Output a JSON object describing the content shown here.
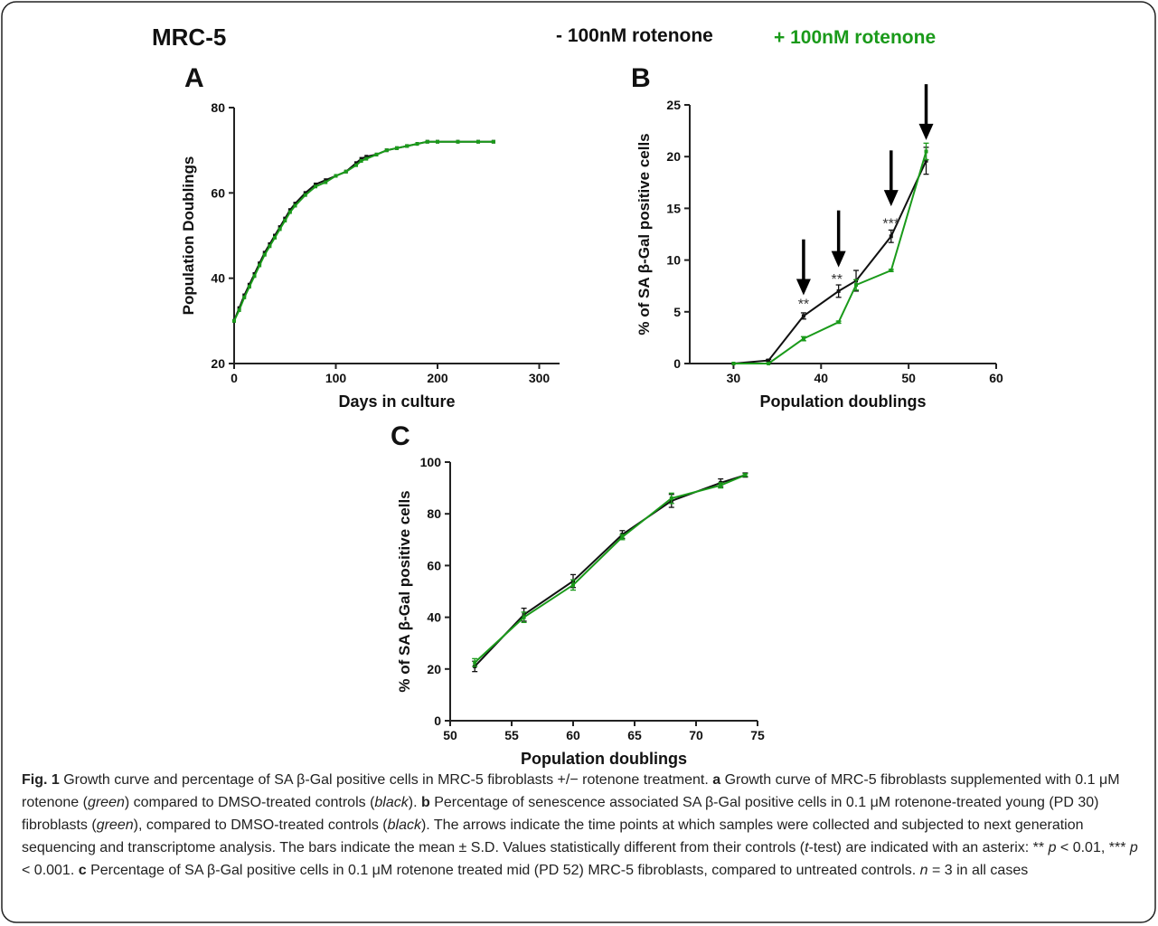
{
  "figure": {
    "cell_line": "MRC-5",
    "legend": [
      {
        "label": "- 100nM rotenone",
        "color": "#111111"
      },
      {
        "label": "+ 100nM rotenone",
        "color": "#1a9a1a"
      }
    ],
    "colors": {
      "control": "#111111",
      "rotenone": "#1a9a1a",
      "frame": "#222222"
    }
  },
  "chart_data": [
    {
      "panel": "A",
      "type": "line",
      "title": "",
      "xlabel": "Days in culture",
      "ylabel": "Population Doublings",
      "xlim": [
        0,
        320
      ],
      "ylim": [
        20,
        80
      ],
      "xticks": [
        0,
        100,
        200,
        300
      ],
      "yticks": [
        20,
        40,
        60,
        80
      ],
      "grid": false,
      "series": [
        {
          "name": "- 100nM rotenone",
          "color": "#111111",
          "x": [
            0,
            5,
            10,
            15,
            20,
            25,
            30,
            35,
            40,
            45,
            50,
            55,
            60,
            70,
            80,
            90,
            100,
            110,
            120,
            125,
            130,
            140,
            150,
            160,
            170,
            180,
            190,
            200,
            220,
            240,
            255
          ],
          "y": [
            30,
            33,
            36,
            38.5,
            41,
            43.5,
            46,
            48,
            50,
            52,
            54,
            56,
            57.5,
            60,
            62,
            63,
            64,
            65,
            67,
            68,
            68.5,
            69,
            70,
            70.5,
            71,
            71.5,
            72,
            72,
            72,
            72,
            72
          ]
        },
        {
          "name": "+ 100nM rotenone",
          "color": "#1a9a1a",
          "x": [
            0,
            5,
            10,
            15,
            20,
            25,
            30,
            35,
            40,
            45,
            50,
            55,
            60,
            70,
            80,
            90,
            100,
            110,
            120,
            125,
            130,
            140,
            150,
            160,
            170,
            180,
            190,
            200,
            220,
            240,
            255
          ],
          "y": [
            30,
            32.5,
            35.5,
            38,
            40.5,
            43,
            45.5,
            47.5,
            49.5,
            51.5,
            53.5,
            55.5,
            57,
            59.5,
            61.5,
            62.5,
            64,
            65,
            66.5,
            67.5,
            68,
            69,
            70,
            70.5,
            71,
            71.5,
            72,
            72,
            72,
            72,
            72
          ]
        }
      ]
    },
    {
      "panel": "B",
      "type": "line",
      "title": "",
      "xlabel": "Population doublings",
      "ylabel": "% of SA β-Gal positive cells",
      "xlim": [
        25,
        60
      ],
      "ylim": [
        0,
        25
      ],
      "xticks": [
        30,
        40,
        50,
        60
      ],
      "yticks": [
        0,
        5,
        10,
        15,
        20,
        25
      ],
      "grid": false,
      "series": [
        {
          "name": "- 100nM rotenone",
          "color": "#111111",
          "x": [
            30,
            34,
            38,
            42,
            44,
            48,
            52
          ],
          "y": [
            0,
            0.3,
            4.6,
            7,
            8,
            12.3,
            19.6
          ],
          "err": [
            0,
            0.1,
            0.3,
            0.6,
            1.0,
            0.6,
            1.3
          ]
        },
        {
          "name": "+ 100nM rotenone",
          "color": "#1a9a1a",
          "x": [
            30,
            34,
            38,
            42,
            44,
            48,
            52
          ],
          "y": [
            0,
            0,
            2.4,
            4,
            7.6,
            9,
            20.5
          ],
          "err": [
            0,
            0,
            0.2,
            0.1,
            0.5,
            0.1,
            0.8
          ]
        }
      ],
      "annotations": [
        {
          "text": "**",
          "x": 38,
          "y": 5.8
        },
        {
          "text": "**",
          "x": 41.8,
          "y": 8.2
        },
        {
          "text": "***",
          "x": 48,
          "y": 13.6
        }
      ],
      "arrows": [
        {
          "x": 38,
          "y_tip": 6.6,
          "y_tail": 12
        },
        {
          "x": 42,
          "y_tip": 9.3,
          "y_tail": 14.8
        },
        {
          "x": 48,
          "y_tip": 15.2,
          "y_tail": 20.6
        },
        {
          "x": 52,
          "y_tip": 21.6,
          "y_tail": 27
        }
      ]
    },
    {
      "panel": "C",
      "type": "line",
      "title": "",
      "xlabel": "Population doublings",
      "ylabel": "% of SA β-Gal positive cells",
      "xlim": [
        50,
        75
      ],
      "ylim": [
        0,
        100
      ],
      "xticks": [
        50,
        55,
        60,
        65,
        70,
        75
      ],
      "yticks": [
        0,
        20,
        40,
        60,
        80,
        100
      ],
      "grid": false,
      "series": [
        {
          "name": "- 100nM rotenone",
          "color": "#111111",
          "x": [
            52,
            56,
            60,
            64,
            68,
            72,
            74
          ],
          "y": [
            21,
            41,
            54,
            72,
            85,
            92,
            95
          ],
          "err": [
            2,
            2.5,
            2.5,
            1.5,
            2.5,
            1.5,
            0.8
          ]
        },
        {
          "name": "+ 100nM rotenone",
          "color": "#1a9a1a",
          "x": [
            52,
            56,
            60,
            64,
            68,
            72,
            74
          ],
          "y": [
            22.5,
            40,
            52.5,
            71,
            86,
            91,
            95
          ],
          "err": [
            1.5,
            2,
            2,
            1,
            2,
            1,
            0.5
          ]
        }
      ]
    }
  ],
  "caption": {
    "fig_label": "Fig. 1",
    "title": " Growth curve and percentage of SA β-Gal positive cells in MRC-5 fibroblasts +/− rotenone treatment. ",
    "a_label": "a",
    "a_text_1": " Growth curve of MRC-5 fibroblasts supplemented with 0.1 μM rotenone (",
    "green": "green",
    "a_text_2": ") compared to DMSO-treated controls (",
    "black": "black",
    "a_text_3": "). ",
    "b_label": "b",
    "b_text_1": " Percentage of senescence associated SA β-Gal positive cells in 0.1 μM rotenone-treated young (PD 30) fibroblasts (",
    "b_text_2": "), compared to DMSO-treated controls (",
    "b_text_3": "). The arrows indicate the time points at which samples were collected and subjected to next generation sequencing and transcriptome analysis. The bars indicate the mean ± S.D. Values statistically different from their controls (",
    "t": "t",
    "b_text_4": "-test) are indicated with an asterix: ** ",
    "p1": "p",
    "b_text_5": " < 0.01, *** ",
    "p2": "p",
    "b_text_6": " < 0.001. ",
    "c_label": "c",
    "c_text_1": " Percentage of SA β-Gal positive cells in 0.1 μM rotenone treated mid (PD 52) MRC-5 fibroblasts, compared to untreated controls. ",
    "n": "n",
    "c_text_2": " = 3 in all cases"
  }
}
